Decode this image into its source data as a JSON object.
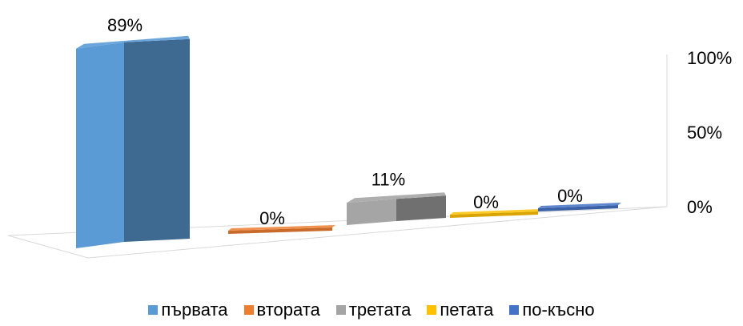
{
  "chart_data": {
    "type": "bar",
    "categories": [
      "първата",
      "втората",
      "третата",
      "петата",
      "по-късно"
    ],
    "values": [
      89,
      0,
      11,
      0,
      0
    ],
    "data_labels": [
      "89%",
      "0%",
      "11%",
      "0%",
      "0%"
    ],
    "ylim": [
      0,
      100
    ],
    "y_ticks": [
      "0%",
      "50%",
      "100%"
    ],
    "legend_position": "bottom",
    "grid": false,
    "colors": [
      "#5B9BD5",
      "#ED7D31",
      "#A5A5A5",
      "#FFC000",
      "#4472C4"
    ]
  }
}
